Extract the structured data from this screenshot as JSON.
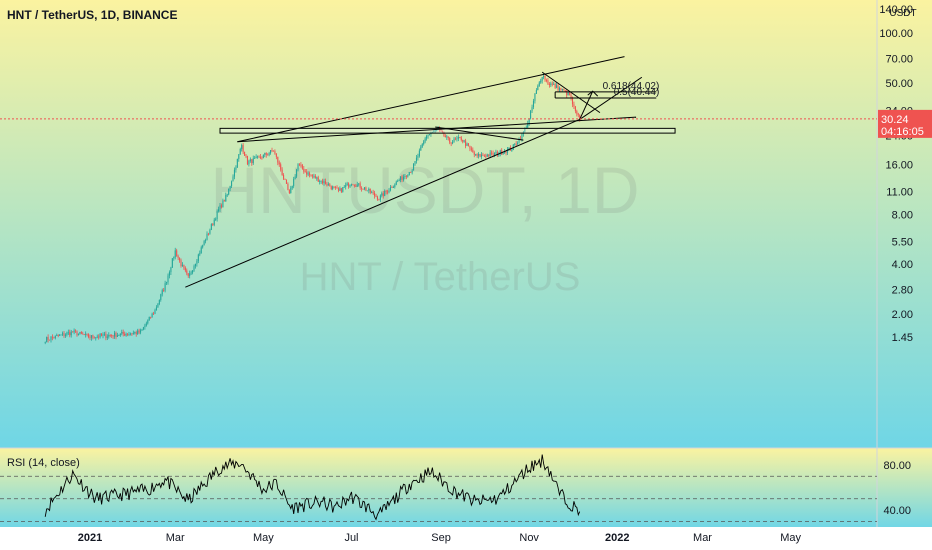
{
  "header": {
    "title": "HNT / TetherUS, 1D, BINANCE"
  },
  "watermark": {
    "symbol": "HNTUSDT, 1D",
    "pair": "HNT / TetherUS"
  },
  "price_scale": {
    "currency": "USDT",
    "current_price": "30.24",
    "countdown": "04:16:05"
  },
  "rsi_panel": {
    "label": "RSI (14, close)"
  },
  "colors": {
    "bg_top": "#fbf3a0",
    "bg_bottom": "#6fd6e6",
    "up_candle": "#26a69a",
    "down_candle": "#ef5350",
    "rsi_line": "#000000",
    "price_line": "#ef5350"
  },
  "chart_data": {
    "type": "candlestick",
    "yscale": "log",
    "ylim": [
      1.35,
      140
    ],
    "y_ticks": [
      {
        "value": 140,
        "label": "140.00"
      },
      {
        "value": 100,
        "label": "100.00"
      },
      {
        "value": 70,
        "label": "70.00"
      },
      {
        "value": 50,
        "label": "50.00"
      },
      {
        "value": 34,
        "label": "34.00"
      },
      {
        "value": 24,
        "label": "24.00"
      },
      {
        "value": 16,
        "label": "16.00"
      },
      {
        "value": 11,
        "label": "11.00"
      },
      {
        "value": 8,
        "label": "8.00"
      },
      {
        "value": 5.5,
        "label": "5.50"
      },
      {
        "value": 4,
        "label": "4.00"
      },
      {
        "value": 2.8,
        "label": "2.80"
      },
      {
        "value": 2,
        "label": "2.00"
      },
      {
        "value": 1.45,
        "label": "1.45"
      }
    ],
    "x_ticks": [
      {
        "date": "2021-01-01",
        "label": "2021"
      },
      {
        "date": "2021-03-01",
        "label": "Mar"
      },
      {
        "date": "2021-05-01",
        "label": "May"
      },
      {
        "date": "2021-07-01",
        "label": "Jul"
      },
      {
        "date": "2021-09-01",
        "label": "Sep"
      },
      {
        "date": "2021-11-01",
        "label": "Nov"
      },
      {
        "date": "2022-01-01",
        "label": "2022"
      },
      {
        "date": "2022-03-01",
        "label": "Mar"
      },
      {
        "date": "2022-05-01",
        "label": "May"
      }
    ],
    "price_anchors": [
      [
        "2020-12-01",
        1.4
      ],
      [
        "2020-12-20",
        1.55
      ],
      [
        "2021-01-01",
        1.45
      ],
      [
        "2021-01-20",
        1.5
      ],
      [
        "2021-02-05",
        1.55
      ],
      [
        "2021-02-15",
        2.1
      ],
      [
        "2021-02-22",
        3.0
      ],
      [
        "2021-03-01",
        4.8
      ],
      [
        "2021-03-05",
        4.0
      ],
      [
        "2021-03-10",
        3.3
      ],
      [
        "2021-03-20",
        5.2
      ],
      [
        "2021-03-31",
        8.5
      ],
      [
        "2021-04-06",
        10.5
      ],
      [
        "2021-04-13",
        17.0
      ],
      [
        "2021-04-16",
        21.0
      ],
      [
        "2021-04-20",
        16.5
      ],
      [
        "2021-04-28",
        17.5
      ],
      [
        "2021-05-08",
        19.5
      ],
      [
        "2021-05-13",
        15.0
      ],
      [
        "2021-05-19",
        10.5
      ],
      [
        "2021-05-25",
        16.0
      ],
      [
        "2021-06-01",
        14.0
      ],
      [
        "2021-06-12",
        12.5
      ],
      [
        "2021-06-22",
        11.0
      ],
      [
        "2021-07-01",
        12.5
      ],
      [
        "2021-07-10",
        11.5
      ],
      [
        "2021-07-20",
        10.0
      ],
      [
        "2021-08-01",
        12.5
      ],
      [
        "2021-08-12",
        15.0
      ],
      [
        "2021-08-22",
        24.0
      ],
      [
        "2021-08-30",
        26.0
      ],
      [
        "2021-09-07",
        22.0
      ],
      [
        "2021-09-15",
        23.0
      ],
      [
        "2021-09-25",
        18.0
      ],
      [
        "2021-10-08",
        18.5
      ],
      [
        "2021-10-20",
        20.0
      ],
      [
        "2021-10-27",
        24.0
      ],
      [
        "2021-11-01",
        30.0
      ],
      [
        "2021-11-05",
        42.0
      ],
      [
        "2021-11-10",
        56.0
      ],
      [
        "2021-11-14",
        50.0
      ],
      [
        "2021-11-18",
        48.0
      ],
      [
        "2021-11-24",
        45.0
      ],
      [
        "2021-11-29",
        42.0
      ],
      [
        "2021-12-03",
        33.0
      ],
      [
        "2021-12-06",
        30.24
      ]
    ],
    "current_price": 30.24,
    "annotations": {
      "fib_levels": [
        {
          "label": "0.618(44.02)",
          "value": 44.02,
          "from": "2021-11-19",
          "to": "2022-01-28"
        },
        {
          "label": "0.5(40.44)",
          "value": 40.44,
          "from": "2021-11-19",
          "to": "2022-01-28"
        }
      ],
      "resistance_zone": {
        "top": 26.5,
        "bottom": 24.8,
        "from": "2021-04-01",
        "to": "2022-02-10"
      },
      "trend_lines": [
        {
          "p1": [
            "2021-03-08",
            2.9
          ],
          "p2": [
            "2021-12-06",
            30.0
          ]
        },
        {
          "p1": [
            "2021-12-06",
            30.0
          ],
          "p2": [
            "2022-01-18",
            54.0
          ]
        },
        {
          "p1": [
            "2021-04-13",
            22.0
          ],
          "p2": [
            "2022-01-06",
            72.0
          ]
        },
        {
          "p1": [
            "2021-04-13",
            22.0
          ],
          "p2": [
            "2022-01-14",
            31.0
          ]
        },
        {
          "p1": [
            "2021-08-28",
            27.0
          ],
          "p2": [
            "2021-10-28",
            22.5
          ]
        },
        {
          "p1": [
            "2021-11-10",
            58.0
          ],
          "p2": [
            "2021-12-20",
            33.0
          ]
        },
        {
          "p1": [
            "2021-12-06",
            30.0
          ],
          "p2": [
            "2021-12-15",
            44.5
          ]
        }
      ]
    },
    "rsi": {
      "ylim": [
        25,
        95
      ],
      "y_ticks": [
        {
          "value": 80,
          "label": "80.00"
        },
        {
          "value": 40,
          "label": "40.00"
        }
      ],
      "bands": [
        70,
        50,
        30
      ],
      "anchors": [
        [
          "2020-12-01",
          40
        ],
        [
          "2020-12-20",
          72
        ],
        [
          "2021-01-05",
          50
        ],
        [
          "2021-01-20",
          53
        ],
        [
          "2021-02-10",
          58
        ],
        [
          "2021-02-22",
          67
        ],
        [
          "2021-03-10",
          48
        ],
        [
          "2021-04-01",
          78
        ],
        [
          "2021-04-15",
          82
        ],
        [
          "2021-05-01",
          58
        ],
        [
          "2021-05-10",
          64
        ],
        [
          "2021-05-20",
          42
        ],
        [
          "2021-06-10",
          47
        ],
        [
          "2021-06-20",
          42
        ],
        [
          "2021-07-01",
          52
        ],
        [
          "2021-07-20",
          35
        ],
        [
          "2021-08-10",
          63
        ],
        [
          "2021-08-25",
          74
        ],
        [
          "2021-09-10",
          57
        ],
        [
          "2021-09-25",
          47
        ],
        [
          "2021-10-10",
          50
        ],
        [
          "2021-10-20",
          62
        ],
        [
          "2021-11-01",
          78
        ],
        [
          "2021-11-10",
          84
        ],
        [
          "2021-11-14",
          78
        ],
        [
          "2021-11-22",
          55
        ],
        [
          "2021-12-01",
          44
        ],
        [
          "2021-12-06",
          37
        ]
      ]
    }
  }
}
